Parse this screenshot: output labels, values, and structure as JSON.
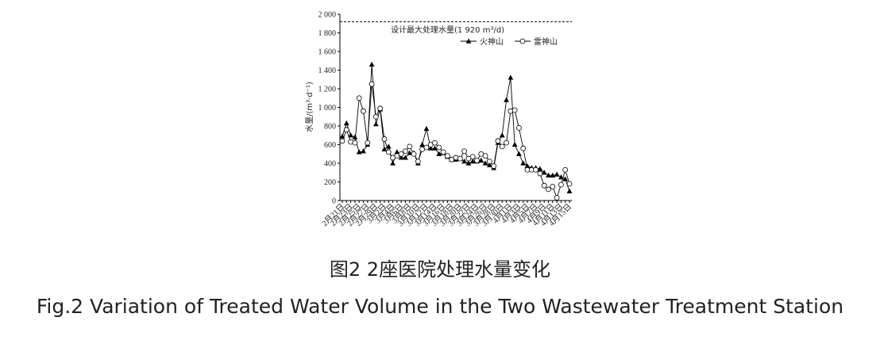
{
  "chart_data": {
    "type": "line",
    "title": "图2 2座医院处理水量变化",
    "subtitle": "Fig.2 Variation of Treated Water Volume in the Two Wastewater Treatment Station",
    "y_label": "水量/(m³·d⁻¹)",
    "annotation": {
      "text": "设计最大处理水量(1 920 m³/d)",
      "value": 1920
    },
    "categories": [
      "2月21日",
      null,
      "2月23日",
      null,
      "2月25日",
      null,
      "2月27日",
      null,
      "2月29日",
      null,
      "3月2日",
      null,
      "3月4日",
      null,
      "3月6日",
      null,
      "3月8日",
      null,
      "3月10日",
      null,
      "3月12日",
      null,
      "3月14日",
      null,
      "3月16日",
      null,
      "3月18日",
      null,
      "3月20日",
      null,
      "3月22日",
      null,
      "3月24日",
      null,
      "3月26日",
      null,
      "3月28日",
      null,
      "3月30日",
      null,
      "4月1日",
      null,
      "4月3日",
      null,
      "4月5日",
      null,
      "4月7日",
      null,
      "4月9日",
      null,
      "4月11日",
      null,
      "4月13日",
      null,
      "4月15日"
    ],
    "series": [
      {
        "name": "火神山",
        "color": "#000000",
        "marker": "triangle",
        "values": [
          690,
          830,
          700,
          680,
          520,
          530,
          600,
          1460,
          820,
          980,
          550,
          580,
          400,
          520,
          460,
          460,
          510,
          510,
          400,
          600,
          770,
          560,
          560,
          500,
          510,
          470,
          440,
          440,
          450,
          420,
          400,
          420,
          420,
          430,
          400,
          380,
          350,
          620,
          700,
          1080,
          1320,
          600,
          500,
          400,
          370,
          350,
          350,
          340,
          300,
          270,
          270,
          280,
          250,
          230,
          100
        ]
      },
      {
        "name": "雷神山",
        "color": "#000000",
        "marker": "circle",
        "values": [
          640,
          760,
          630,
          620,
          1100,
          960,
          620,
          1250,
          900,
          990,
          660,
          520,
          460,
          480,
          500,
          530,
          580,
          500,
          420,
          550,
          570,
          600,
          620,
          570,
          520,
          480,
          440,
          460,
          450,
          530,
          450,
          470,
          430,
          500,
          480,
          420,
          370,
          640,
          580,
          620,
          960,
          970,
          780,
          560,
          330,
          330,
          330,
          290,
          160,
          120,
          150,
          30,
          170,
          330,
          180
        ]
      }
    ],
    "ylim": [
      0,
      2000
    ],
    "yticks": [
      0,
      200,
      400,
      600,
      800,
      {
        "value": 1000,
        "label": "1 000"
      },
      {
        "value": 1200,
        "label": "1 200"
      },
      {
        "value": 1400,
        "label": "1 400"
      },
      {
        "value": 1600,
        "label": "1 600"
      },
      {
        "value": 1800,
        "label": "1 800"
      },
      {
        "value": 2000,
        "label": "2 000"
      }
    ],
    "legend": "upper-right"
  }
}
